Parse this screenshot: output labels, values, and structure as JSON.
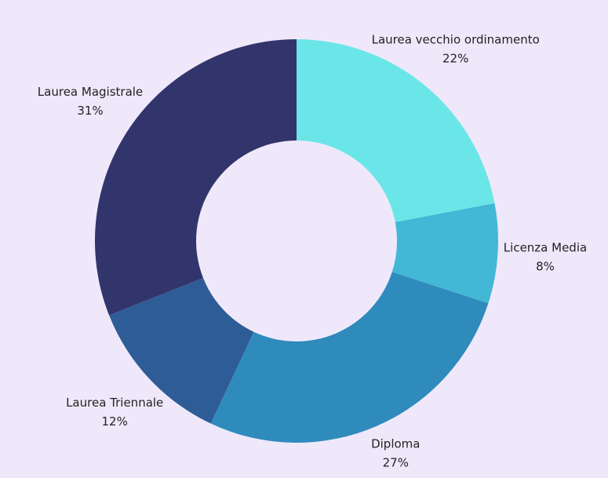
{
  "chart_data": {
    "type": "donut",
    "categories": [
      "Laurea vecchio ordinamento",
      "Licenza Media",
      "Diploma",
      "Laurea Triennale",
      "Laurea Magistrale"
    ],
    "values": [
      22,
      8,
      27,
      12,
      31
    ],
    "value_labels": [
      "22%",
      "8%",
      "27%",
      "12%",
      "31%"
    ],
    "colors": [
      "#6ae6e8",
      "#42b8d6",
      "#2e8bbb",
      "#2e5c96",
      "#32356b"
    ]
  }
}
